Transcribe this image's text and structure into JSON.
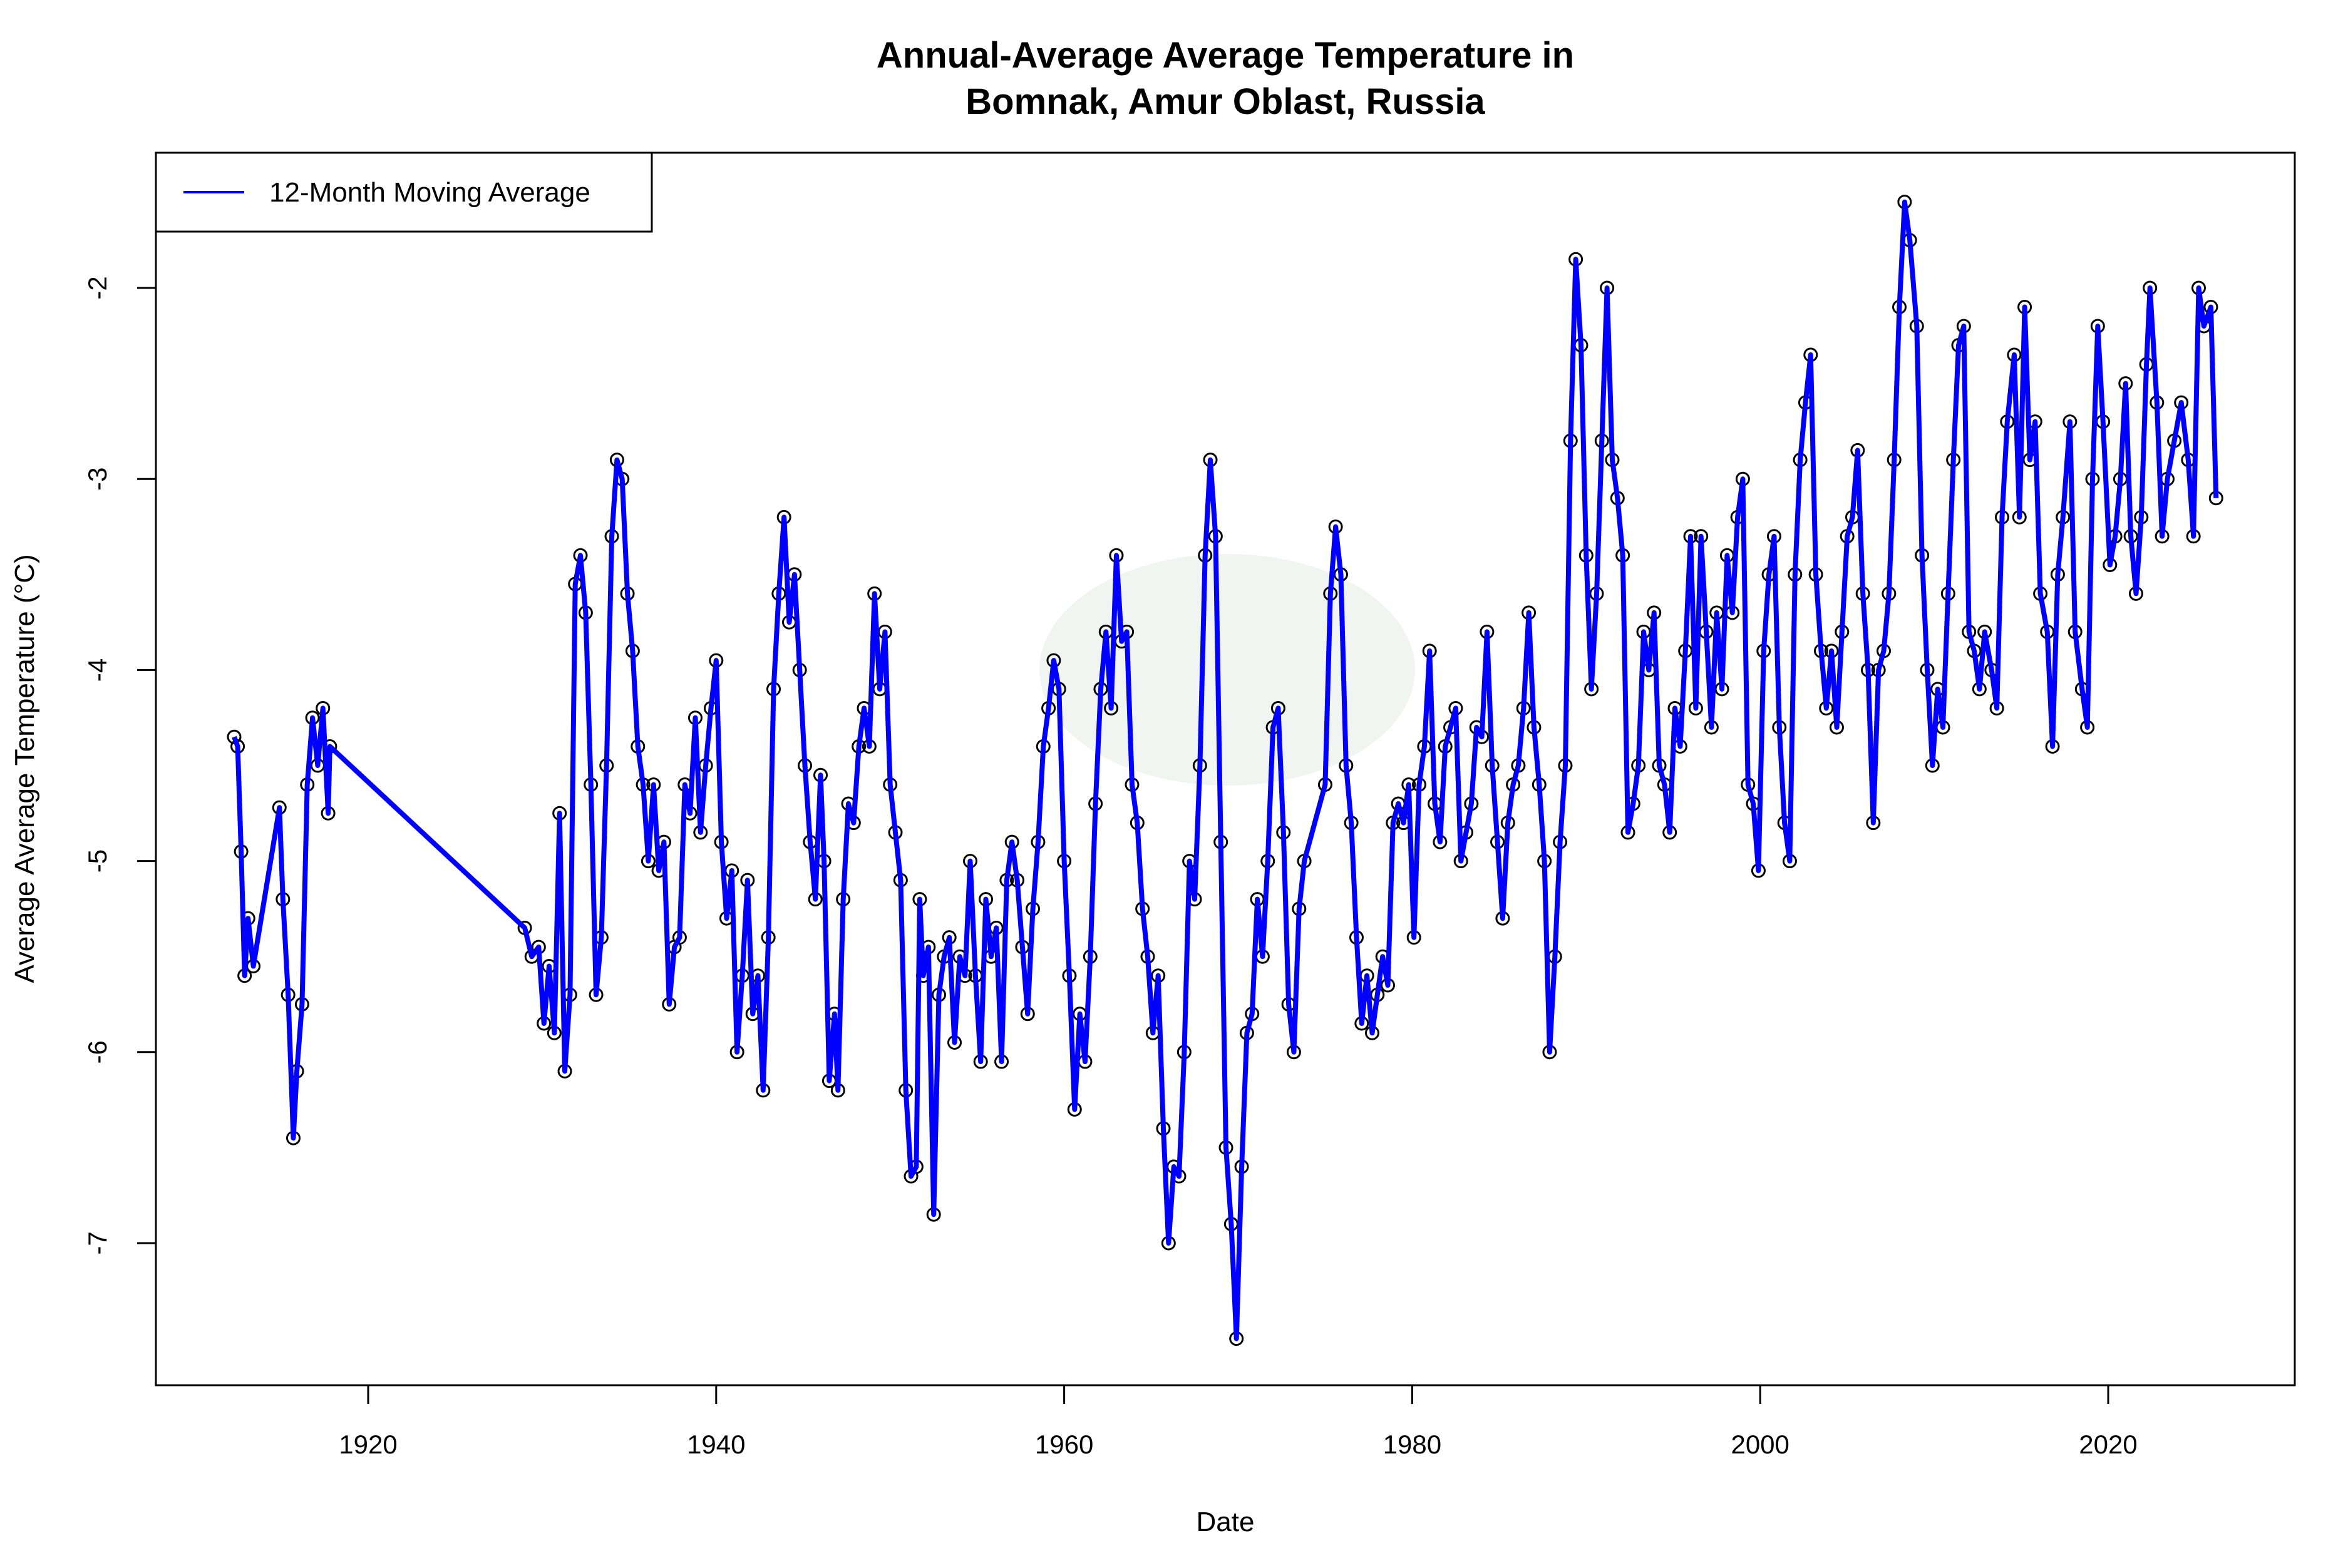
{
  "chart_data": {
    "type": "line",
    "title_lines": [
      "Annual-Average Average Temperature in",
      "Bomnak, Amur Oblast, Russia"
    ],
    "xlabel": "Date",
    "ylabel": "Average Average Temperature (°C)",
    "xlim": [
      1910,
      2031
    ],
    "ylim": [
      -7.75,
      -1.3
    ],
    "xticks": [
      1920,
      1940,
      1960,
      1980,
      2000,
      2020
    ],
    "yticks": [
      -7,
      -6,
      -5,
      -4,
      -3,
      -2
    ],
    "grid": false,
    "legend_placement": "top-left",
    "series": [
      {
        "name": "12-Month Moving Average",
        "color": "#0000ff",
        "marker_color": "#000000",
        "x": [
          1912.3,
          1912.5,
          1912.7,
          1912.9,
          1913.1,
          1913.4,
          1914.9,
          1915.1,
          1915.4,
          1915.7,
          1915.9,
          1916.2,
          1916.5,
          1916.8,
          1917.1,
          1917.4,
          1917.7,
          1917.8,
          1929.0,
          1929.4,
          1929.8,
          1930.1,
          1930.4,
          1930.7,
          1931.0,
          1931.3,
          1931.6,
          1931.9,
          1932.2,
          1932.5,
          1932.8,
          1933.1,
          1933.4,
          1933.7,
          1934.0,
          1934.3,
          1934.6,
          1934.9,
          1935.2,
          1935.5,
          1935.8,
          1936.1,
          1936.4,
          1936.7,
          1937.0,
          1937.3,
          1937.6,
          1937.9,
          1938.2,
          1938.5,
          1938.8,
          1939.1,
          1939.4,
          1939.7,
          1940.0,
          1940.3,
          1940.6,
          1940.9,
          1941.2,
          1941.5,
          1941.8,
          1942.1,
          1942.4,
          1942.7,
          1943.0,
          1943.3,
          1943.6,
          1943.9,
          1944.2,
          1944.5,
          1944.8,
          1945.1,
          1945.4,
          1945.7,
          1946.0,
          1946.2,
          1946.5,
          1946.8,
          1947.0,
          1947.3,
          1947.6,
          1947.9,
          1948.2,
          1948.5,
          1948.8,
          1949.1,
          1949.4,
          1949.7,
          1950.0,
          1950.3,
          1950.6,
          1950.9,
          1951.2,
          1951.5,
          1951.7,
          1951.9,
          1952.2,
          1952.5,
          1952.8,
          1953.1,
          1953.4,
          1953.7,
          1954.0,
          1954.3,
          1954.6,
          1954.9,
          1955.2,
          1955.5,
          1955.8,
          1956.1,
          1956.4,
          1956.7,
          1957.0,
          1957.3,
          1957.6,
          1957.9,
          1958.2,
          1958.5,
          1958.8,
          1959.1,
          1959.4,
          1959.7,
          1960.0,
          1960.3,
          1960.6,
          1960.9,
          1961.2,
          1961.5,
          1961.8,
          1962.1,
          1962.4,
          1962.7,
          1963.0,
          1963.3,
          1963.6,
          1963.9,
          1964.2,
          1964.5,
          1964.8,
          1965.1,
          1965.4,
          1965.7,
          1966.0,
          1966.3,
          1966.6,
          1966.9,
          1967.2,
          1967.5,
          1967.8,
          1968.1,
          1968.4,
          1968.7,
          1969.0,
          1969.3,
          1969.6,
          1969.9,
          1970.2,
          1970.5,
          1970.8,
          1971.1,
          1971.4,
          1971.7,
          1972.0,
          1972.3,
          1972.6,
          1972.9,
          1973.2,
          1973.5,
          1973.8,
          1975.0,
          1975.3,
          1975.6,
          1975.9,
          1976.2,
          1976.5,
          1976.8,
          1977.1,
          1977.4,
          1977.7,
          1978.0,
          1978.3,
          1978.6,
          1978.9,
          1979.2,
          1979.5,
          1979.8,
          1980.1,
          1980.4,
          1980.7,
          1981.0,
          1981.3,
          1981.6,
          1981.9,
          1982.2,
          1982.5,
          1982.8,
          1983.1,
          1983.4,
          1983.7,
          1984.0,
          1984.3,
          1984.6,
          1984.9,
          1985.2,
          1985.5,
          1985.8,
          1986.1,
          1986.4,
          1986.7,
          1987.0,
          1987.3,
          1987.6,
          1987.9,
          1988.2,
          1988.5,
          1988.8,
          1989.1,
          1989.4,
          1989.7,
          1990.0,
          1990.3,
          1990.6,
          1990.9,
          1991.2,
          1991.5,
          1991.8,
          1992.1,
          1992.4,
          1992.7,
          1993.0,
          1993.3,
          1993.6,
          1993.9,
          1994.2,
          1994.5,
          1994.8,
          1995.1,
          1995.4,
          1995.7,
          1996.0,
          1996.3,
          1996.6,
          1996.9,
          1997.2,
          1997.5,
          1997.8,
          1998.1,
          1998.4,
          1998.7,
          1999.0,
          1999.3,
          1999.6,
          1999.9,
          2000.2,
          2000.5,
          2000.8,
          2001.1,
          2001.4,
          2001.7,
          2002.0,
          2002.3,
          2002.6,
          2002.9,
          2003.2,
          2003.5,
          2003.8,
          2004.1,
          2004.4,
          2004.7,
          2005.0,
          2005.3,
          2005.6,
          2005.9,
          2006.2,
          2006.5,
          2006.8,
          2007.1,
          2007.4,
          2007.7,
          2008.0,
          2008.3,
          2008.6,
          2009.0,
          2009.3,
          2009.6,
          2009.9,
          2010.2,
          2010.5,
          2010.8,
          2011.1,
          2011.4,
          2011.7,
          2012.0,
          2012.3,
          2012.6,
          2012.9,
          2013.3,
          2013.6,
          2013.9,
          2014.2,
          2014.6,
          2014.9,
          2015.2,
          2015.5,
          2015.8,
          2016.1,
          2016.5,
          2016.8,
          2017.1,
          2017.4,
          2017.8,
          2018.1,
          2018.5,
          2018.8,
          2019.1,
          2019.4,
          2019.7,
          2020.1,
          2020.4,
          2020.7,
          2021.0,
          2021.3,
          2021.6,
          2021.9,
          2022.2,
          2022.4,
          2022.8,
          2023.1,
          2023.4,
          2023.8,
          2024.2,
          2024.6,
          2024.9,
          2025.2,
          2025.5,
          2025.9,
          2026.2
        ],
        "y": [
          -4.35,
          -4.4,
          -4.95,
          -5.6,
          -5.3,
          -5.55,
          -4.72,
          -5.2,
          -5.7,
          -6.45,
          -6.1,
          -5.75,
          -4.6,
          -4.25,
          -4.5,
          -4.2,
          -4.75,
          -4.4,
          -5.35,
          -5.5,
          -5.45,
          -5.85,
          -5.55,
          -5.9,
          -4.75,
          -6.1,
          -5.7,
          -3.55,
          -3.4,
          -3.7,
          -4.6,
          -5.7,
          -5.4,
          -4.5,
          -3.3,
          -2.9,
          -3.0,
          -3.6,
          -3.9,
          -4.4,
          -4.6,
          -5.0,
          -4.6,
          -5.05,
          -4.9,
          -5.75,
          -5.45,
          -5.4,
          -4.6,
          -4.75,
          -4.25,
          -4.85,
          -4.5,
          -4.2,
          -3.95,
          -4.9,
          -5.3,
          -5.05,
          -6.0,
          -5.6,
          -5.1,
          -5.8,
          -5.6,
          -6.2,
          -5.4,
          -4.1,
          -3.6,
          -3.2,
          -3.75,
          -3.5,
          -4.0,
          -4.5,
          -4.9,
          -5.2,
          -4.55,
          -5.0,
          -6.15,
          -5.8,
          -6.2,
          -5.2,
          -4.7,
          -4.8,
          -4.4,
          -4.2,
          -4.4,
          -3.6,
          -4.1,
          -3.8,
          -4.6,
          -4.85,
          -5.1,
          -6.2,
          -6.65,
          -6.6,
          -5.2,
          -5.6,
          -5.45,
          -6.85,
          -5.7,
          -5.5,
          -5.4,
          -5.95,
          -5.5,
          -5.6,
          -5.0,
          -5.6,
          -6.05,
          -5.2,
          -5.5,
          -5.35,
          -6.05,
          -5.1,
          -4.9,
          -5.1,
          -5.45,
          -5.8,
          -5.25,
          -4.9,
          -4.4,
          -4.2,
          -3.95,
          -4.1,
          -5.0,
          -5.6,
          -6.3,
          -5.8,
          -6.05,
          -5.5,
          -4.7,
          -4.1,
          -3.8,
          -4.2,
          -3.4,
          -3.85,
          -3.8,
          -4.6,
          -4.8,
          -5.25,
          -5.5,
          -5.9,
          -5.6,
          -6.4,
          -7.0,
          -6.6,
          -6.65,
          -6.0,
          -5.0,
          -5.2,
          -4.5,
          -3.4,
          -2.9,
          -3.3,
          -4.9,
          -6.5,
          -6.9,
          -7.5,
          -6.6,
          -5.9,
          -5.8,
          -5.2,
          -5.5,
          -5.0,
          -4.3,
          -4.2,
          -4.85,
          -5.75,
          -6.0,
          -5.25,
          -5.0,
          -4.6,
          -3.6,
          -3.25,
          -3.5,
          -4.5,
          -4.8,
          -5.4,
          -5.85,
          -5.6,
          -5.9,
          -5.7,
          -5.5,
          -5.65,
          -4.8,
          -4.7,
          -4.8,
          -4.6,
          -5.4,
          -4.6,
          -4.4,
          -3.9,
          -4.7,
          -4.9,
          -4.4,
          -4.3,
          -4.2,
          -5.0,
          -4.85,
          -4.7,
          -4.3,
          -4.35,
          -3.8,
          -4.5,
          -4.9,
          -5.3,
          -4.8,
          -4.6,
          -4.5,
          -4.2,
          -3.7,
          -4.3,
          -4.6,
          -5.0,
          -6.0,
          -5.5,
          -4.9,
          -4.5,
          -2.8,
          -1.85,
          -2.3,
          -3.4,
          -4.1,
          -3.6,
          -2.8,
          -2.0,
          -2.9,
          -3.1,
          -3.4,
          -4.85,
          -4.7,
          -4.5,
          -3.8,
          -4.0,
          -3.7,
          -4.5,
          -4.6,
          -4.85,
          -4.2,
          -4.4,
          -3.9,
          -3.3,
          -4.2,
          -3.3,
          -3.8,
          -4.3,
          -3.7,
          -4.1,
          -3.4,
          -3.7,
          -3.2,
          -3.0,
          -4.6,
          -4.7,
          -5.05,
          -3.9,
          -3.5,
          -3.3,
          -4.3,
          -4.8,
          -5.0,
          -3.5,
          -2.9,
          -2.6,
          -2.35,
          -3.5,
          -3.9,
          -4.2,
          -3.9,
          -4.3,
          -3.8,
          -3.3,
          -3.2,
          -2.85,
          -3.6,
          -4.0,
          -4.8,
          -4.0,
          -3.9,
          -3.6,
          -2.9,
          -2.1,
          -1.55,
          -1.75,
          -2.2,
          -3.4,
          -4.0,
          -4.5,
          -4.1,
          -4.3,
          -3.6,
          -2.9,
          -2.3,
          -2.2,
          -3.8,
          -3.9,
          -4.1,
          -3.8,
          -4.0,
          -4.2,
          -3.2,
          -2.7,
          -2.35,
          -3.2,
          -2.1,
          -2.9,
          -2.7,
          -3.6,
          -3.8,
          -4.4,
          -3.5,
          -3.2,
          -2.7,
          -3.8,
          -4.1,
          -4.3,
          -3.0,
          -2.2,
          -2.7,
          -3.45,
          -3.3,
          -3.0,
          -2.5,
          -3.3,
          -3.6,
          -3.2,
          -2.4,
          -2.0,
          -2.6,
          -3.3,
          -3.0,
          -2.8,
          -2.6,
          -2.9,
          -3.3,
          -2.0,
          -2.2,
          -2.1,
          -3.1
        ]
      }
    ]
  }
}
